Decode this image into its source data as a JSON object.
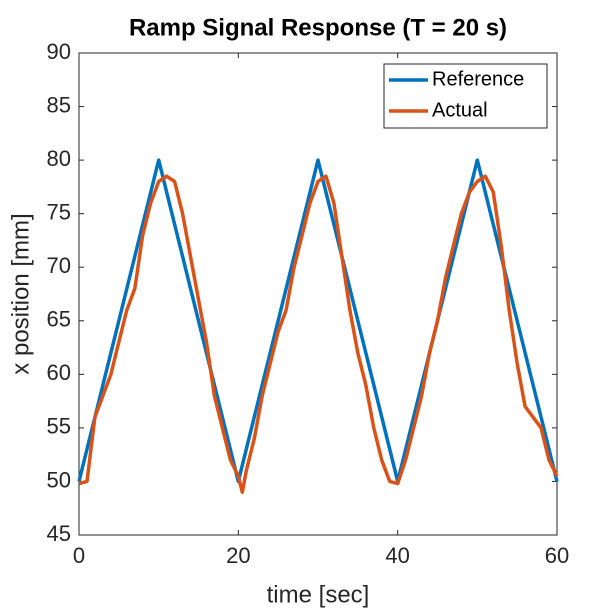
{
  "chart_data": {
    "type": "line",
    "title": "Ramp Signal Response (T = 20 s)",
    "xlabel": "time [sec]",
    "ylabel": "x position [mm]",
    "xlim": [
      0,
      60
    ],
    "ylim": [
      45,
      90
    ],
    "xticks": [
      0,
      20,
      40,
      60
    ],
    "yticks": [
      45,
      50,
      55,
      60,
      65,
      70,
      75,
      80,
      85,
      90
    ],
    "legend": "northeast",
    "series": [
      {
        "name": "Reference",
        "color": "#0072bd",
        "x": [
          0,
          10,
          20,
          30,
          40,
          50,
          60
        ],
        "values": [
          50,
          80,
          50,
          80,
          50,
          80,
          50
        ]
      },
      {
        "name": "Actual",
        "color": "#d95319",
        "x": [
          0,
          1,
          2,
          3,
          4,
          5,
          6,
          7,
          8,
          9,
          10,
          11,
          12,
          13,
          14,
          15,
          16,
          17,
          18,
          19,
          20,
          20.5,
          21,
          22,
          23,
          24,
          25,
          26,
          27,
          28,
          29,
          30,
          31,
          32,
          33,
          34,
          35,
          36,
          37,
          38,
          39,
          40,
          41,
          42,
          43,
          44,
          45,
          46,
          47,
          48,
          49,
          50,
          51,
          52,
          53,
          54,
          55,
          56,
          57,
          58,
          59,
          60
        ],
        "values": [
          49.8,
          50,
          56,
          58,
          60,
          63,
          66,
          68,
          73,
          76,
          78,
          78.5,
          78,
          75,
          71,
          67,
          63,
          58,
          55,
          52,
          50.5,
          49,
          51,
          54,
          58,
          61,
          64,
          66,
          70,
          73,
          76,
          78,
          78.5,
          76,
          71,
          66,
          62,
          59,
          55,
          52,
          50,
          49.8,
          52,
          55,
          58,
          62,
          65,
          69,
          72,
          75,
          77,
          78,
          78.5,
          77,
          72,
          66,
          61,
          57,
          56,
          55,
          52,
          50.5
        ]
      }
    ]
  }
}
